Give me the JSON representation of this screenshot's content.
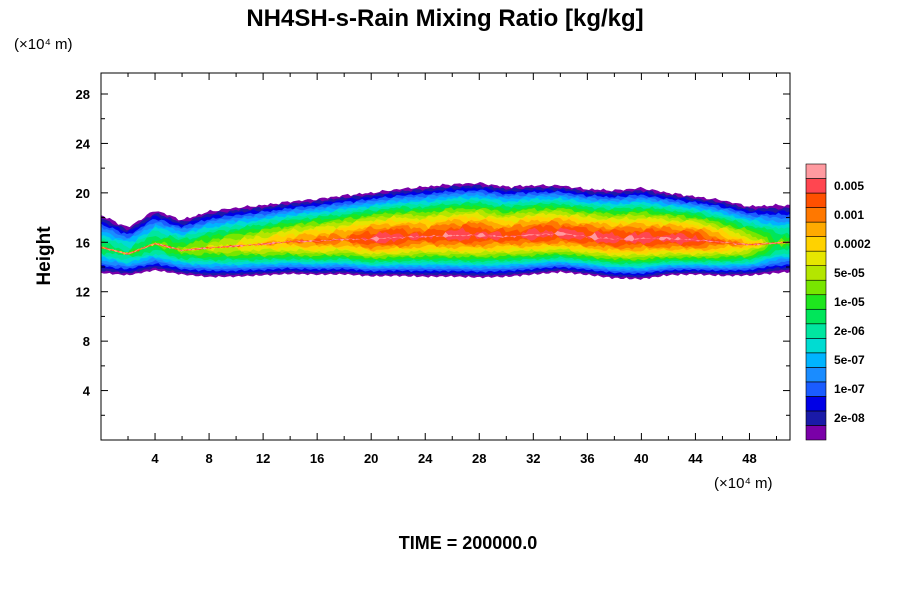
{
  "chart_data": {
    "type": "heatmap",
    "title": "NH4SH-s-Rain Mixing Ratio [kg/kg]",
    "ylabel": "Height",
    "xlabel": "",
    "x_unit": "(×10⁴ m)",
    "y_unit": "(×10⁴ m)",
    "xlim": [
      0,
      51
    ],
    "ylim": [
      0,
      29.7
    ],
    "x_ticks": [
      4,
      8,
      12,
      16,
      20,
      24,
      28,
      32,
      36,
      40,
      44,
      48
    ],
    "y_ticks": [
      4,
      8,
      12,
      16,
      20,
      24,
      28
    ],
    "colorbar": {
      "levels": [
        "",
        "2e-08",
        "",
        "1e-07",
        "",
        "5e-07",
        "",
        "2e-06",
        "",
        "1e-05",
        "",
        "5e-05",
        "",
        "0.0002",
        "",
        "0.001",
        "",
        "0.005",
        ""
      ],
      "colors": [
        "#7a00a8",
        "#1a1aa8",
        "#0000e6",
        "#1a5cff",
        "#1a8cff",
        "#00b4ff",
        "#00dcd2",
        "#00e6a0",
        "#00e65a",
        "#1ee61e",
        "#78e600",
        "#b4e600",
        "#e6e600",
        "#ffd200",
        "#ffaa00",
        "#ff7800",
        "#ff5000",
        "#ff4650",
        "#ff9aa0"
      ]
    },
    "layer": {
      "x": [
        0,
        2,
        4,
        6,
        8,
        10,
        12,
        14,
        16,
        18,
        20,
        22,
        24,
        26,
        28,
        30,
        32,
        34,
        36,
        38,
        40,
        42,
        44,
        46,
        48,
        50,
        51
      ],
      "bottom": [
        13.0,
        12.9,
        13.2,
        12.9,
        12.6,
        12.6,
        12.7,
        12.8,
        12.7,
        12.7,
        12.5,
        12.5,
        12.4,
        12.4,
        12.3,
        12.4,
        12.6,
        12.8,
        12.6,
        12.3,
        12.2,
        12.6,
        12.7,
        12.6,
        12.7,
        12.9,
        13.0
      ],
      "top": [
        18.2,
        17.2,
        18.6,
        17.8,
        18.5,
        18.8,
        19.0,
        19.3,
        19.5,
        19.8,
        20.0,
        20.3,
        20.5,
        20.7,
        20.8,
        20.5,
        20.6,
        20.6,
        20.3,
        20.2,
        20.4,
        20.0,
        19.7,
        19.4,
        18.9,
        19.0,
        19.0
      ],
      "peak_level": [
        8,
        8,
        9,
        10,
        11,
        12,
        13,
        14,
        15,
        15,
        17,
        17,
        16,
        17,
        17,
        16,
        17,
        17,
        17,
        17,
        17,
        17,
        17,
        15,
        13,
        9,
        9
      ]
    }
  },
  "footer": {
    "time_label": "TIME = 200000.0"
  }
}
